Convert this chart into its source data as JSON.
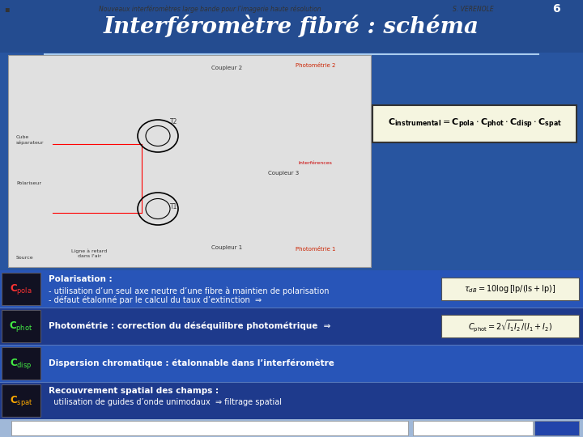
{
  "title": "Interféromètre fibré : schéma",
  "bg_dark_blue": "#1e3a6e",
  "bg_medium_blue": "#2855a0",
  "bg_row_dark": "#1e3a8c",
  "bg_row_light": "#2855b8",
  "header_bg": "#2855a0",
  "title_color": "#ffffff",
  "title_fontsize": 20,
  "rows": [
    {
      "label": "C$_{\\mathrm{pola}}$",
      "label_color": "#ff3333",
      "label_bg": "#111122",
      "title_text": "Polarisation :",
      "lines": [
        "- utilisation d’un seul axe neutre d’une fibre à maintien de polarisation",
        "- défaut étalonné par le calcul du taux d’extinction  ⇒"
      ],
      "formula": "$\\tau_{dB}= 10\\log\\left[\\mathrm{Ip/(Is+Ip)}\\right]$",
      "row_bg": "#2a55bb"
    },
    {
      "label": "C$_{\\mathrm{phot}}$",
      "label_color": "#44ee44",
      "label_bg": "#111122",
      "title_text": "Photométrie : correction du déséquilibre photométrique  ⇒",
      "lines": [],
      "formula": "$C_{\\mathrm{phot}} = 2\\sqrt{I_1 I_2}/(I_1+I_2)$",
      "row_bg": "#1e4aaa"
    },
    {
      "label": "C$_{\\mathrm{disp}}$",
      "label_color": "#44ee44",
      "label_bg": "#111122",
      "title_text": "Dispersion chromatique : étalonnable dans l’interféromètre",
      "lines": [],
      "formula": "",
      "row_bg": "#2a55bb"
    },
    {
      "label": "C$_{\\mathrm{spat}}$",
      "label_color": "#ffaa00",
      "label_bg": "#111122",
      "title_text": "Recouvrement spatial des champs :",
      "lines": [
        "  utilisation de guides d’onde unimodaux  ⇒ filtrage spatial"
      ],
      "formula": "",
      "row_bg": "#1e4aaa"
    }
  ],
  "footer_text": "Nouveaux interféromètres large bande pour l’imagerie haute résolution",
  "footer_author": "S. VERENOLE",
  "footer_page": "6"
}
